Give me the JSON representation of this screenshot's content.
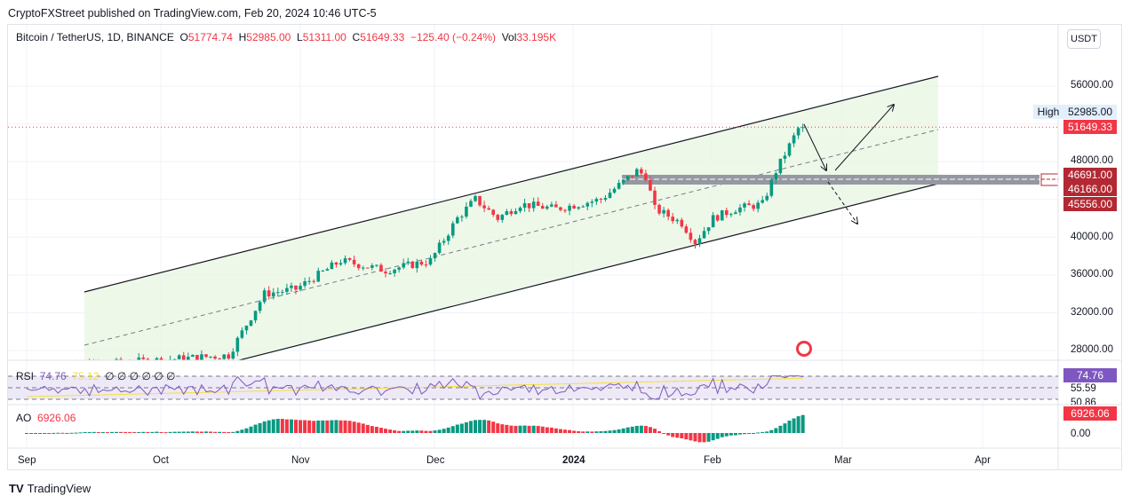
{
  "publisher": "CryptoFXStreet published on TradingView.com, Feb 20, 2024 10:46 UTC-5",
  "symbol": {
    "name": "Bitcoin / TetherUS, 1D, BINANCE",
    "o_label": "O",
    "o": "51774.74",
    "h_label": "H",
    "h": "52985.00",
    "l_label": "L",
    "l": "51311.00",
    "c_label": "C",
    "c": "51649.33",
    "change": "−125.40 (−0.24%)",
    "vol_label": "Vol",
    "vol": "33.195K"
  },
  "currency_button": "USDT",
  "price_axis": [
    "56000.00",
    "48000.00",
    "40000.00",
    "36000.00",
    "32000.00",
    "28000.00"
  ],
  "tags": {
    "high_label": "High",
    "high": "52985.00",
    "last": "51649.33",
    "z1": "46691.00",
    "z2": "46166.00",
    "z3": "45556.00"
  },
  "rsi": {
    "label": "RSI",
    "value": "74.76",
    "ma": "75.12",
    "params": "∅ ∅ ∅ ∅ ∅ ∅",
    "axis_a": "55.59",
    "axis_b": "50.86",
    "tag": "74.76"
  },
  "ao": {
    "label": "AO",
    "value": "6926.06",
    "tag": "6926.06",
    "axis": "0.00"
  },
  "time_axis": [
    {
      "t": "Sep"
    },
    {
      "t": "Oct"
    },
    {
      "t": "Nov"
    },
    {
      "t": "Dec"
    },
    {
      "t": "2024",
      "bold": true
    },
    {
      "t": "Feb"
    },
    {
      "t": "Mar"
    },
    {
      "t": "Apr"
    }
  ],
  "brand": "TradingView",
  "colors": {
    "up": "#089981",
    "down": "#f23645",
    "rsi": "#7e57c2",
    "zone": "#b22833"
  },
  "price_path": [
    [
      0,
      26000
    ],
    [
      30,
      27000
    ],
    [
      45,
      27500
    ],
    [
      53,
      34000
    ],
    [
      60,
      34500
    ],
    [
      70,
      37500
    ],
    [
      80,
      36500
    ],
    [
      90,
      37500
    ],
    [
      96,
      42000
    ],
    [
      100,
      44000
    ],
    [
      105,
      42000
    ],
    [
      110,
      43500
    ],
    [
      118,
      43000
    ],
    [
      128,
      44000
    ],
    [
      136,
      47000
    ],
    [
      138,
      46500
    ],
    [
      140,
      43000
    ],
    [
      146,
      41500
    ],
    [
      149,
      39500
    ],
    [
      153,
      42000
    ],
    [
      158,
      43000
    ],
    [
      164,
      43500
    ],
    [
      167,
      47000
    ],
    [
      172,
      51500
    ],
    [
      172.5,
      52000
    ],
    [
      173,
      51649
    ]
  ]
}
